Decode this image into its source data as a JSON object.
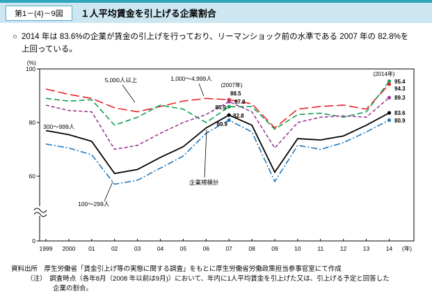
{
  "header": {
    "figure_no": "第1－(4)－9図",
    "title": "１人平均賃金を引上げる企業割合"
  },
  "summary": {
    "bullet": "○",
    "text": "2014 年は 83.6%の企業が賃金の引上げを行っており、リーマンショック前の水準である 2007 年の 82.8%を上回っている。"
  },
  "chart_data": {
    "type": "line",
    "y_axis_unit": "(%)",
    "x_axis_unit": "(年)",
    "y_ticks": [
      "100",
      "80",
      "60",
      "0"
    ],
    "y_tick_values": [
      100,
      80,
      60,
      0
    ],
    "axis_break": true,
    "x_labels": [
      "1999",
      "2000",
      "01",
      "02",
      "03",
      "04",
      "05",
      "06",
      "07",
      "08",
      "09",
      "10",
      "11",
      "12",
      "13",
      "14"
    ],
    "series": [
      {
        "name": "1,000〜4,999人",
        "color": "#e8232a",
        "dash": "long-dash",
        "values": [
          92.5,
          90.5,
          89.0,
          85.5,
          84.0,
          86.0,
          88.0,
          89.0,
          88.5,
          87.0,
          78.0,
          85.0,
          86.0,
          86.5,
          85.0,
          94.3
        ]
      },
      {
        "name": "5,000人以上",
        "color": "#109f4e",
        "dash": "dash",
        "values": [
          89.0,
          88.0,
          88.5,
          79.0,
          82.0,
          86.5,
          85.0,
          80.0,
          85.9,
          86.0,
          77.5,
          83.0,
          83.5,
          82.0,
          84.0,
          95.4
        ]
      },
      {
        "name": "300〜999人",
        "color": "#9a3a96",
        "dash": "short-dash",
        "values": [
          86.5,
          84.5,
          84.0,
          70.0,
          71.5,
          76.0,
          80.0,
          83.0,
          87.8,
          84.0,
          70.5,
          80.0,
          82.0,
          82.5,
          82.0,
          89.3
        ]
      },
      {
        "name": "100〜299人",
        "color": "#1e78be",
        "dash": "dash-dot",
        "values": [
          72.0,
          70.5,
          68.0,
          57.0,
          58.5,
          63.0,
          67.5,
          76.0,
          80.9,
          76.5,
          58.0,
          71.5,
          70.0,
          72.5,
          76.5,
          80.9
        ]
      },
      {
        "name": "企業規模計",
        "color": "#000000",
        "dash": "solid",
        "values": [
          77.0,
          75.5,
          73.0,
          61.0,
          62.5,
          67.0,
          71.0,
          78.0,
          82.8,
          79.0,
          61.5,
          74.0,
          73.5,
          75.0,
          79.0,
          83.6
        ]
      }
    ],
    "annotations": [
      {
        "label": "(2007年)",
        "x_index": 8,
        "entries": [
          {
            "series": 0,
            "value": 88.5
          },
          {
            "series": 2,
            "value": 87.8
          },
          {
            "series": 1,
            "value": 85.9
          },
          {
            "series": 4,
            "value": 82.8
          },
          {
            "series": 3,
            "value": 80.9
          }
        ]
      },
      {
        "label": "(2014年)",
        "x_index": 15,
        "entries": [
          {
            "series": 1,
            "value": 95.4
          },
          {
            "series": 0,
            "value": 94.3
          },
          {
            "series": 2,
            "value": 89.3
          },
          {
            "series": 4,
            "value": 83.6
          },
          {
            "series": 3,
            "value": 80.9
          }
        ]
      }
    ]
  },
  "footer": {
    "source": "資料出所　厚生労働省「賃金引上げ等の実態に関する調査」をもとに厚生労働省労働政策担当参事官室にて作成",
    "note1": "（注）　調査時点（各年8月（2008 年以前は9月)）において、年内に1人平均賃金を引上げた又は、引上げる予定と回答した",
    "note2": "企業の割合。"
  }
}
